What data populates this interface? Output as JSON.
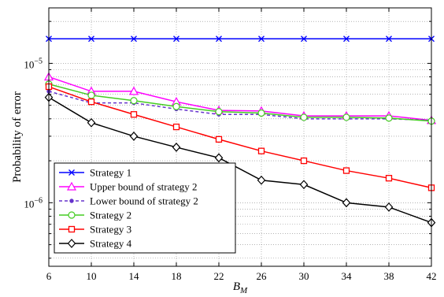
{
  "chart_data": {
    "type": "line",
    "xlabel": "B",
    "xlabel_sub": "M",
    "ylabel": "Probability of error",
    "x": [
      6,
      10,
      14,
      18,
      22,
      26,
      30,
      34,
      38,
      42
    ],
    "xlim": [
      6,
      42
    ],
    "ylim": [
      3.5e-07,
      2.5e-05
    ],
    "yscale": "log",
    "grid": "dotted",
    "legend_position": "bottom-left",
    "x_ticks": [
      "6",
      "10",
      "14",
      "18",
      "22",
      "26",
      "30",
      "34",
      "38",
      "42"
    ],
    "y_ticks": [
      {
        "value": 1e-06,
        "base": "10",
        "exp": "−6"
      },
      {
        "value": 1e-05,
        "base": "10",
        "exp": "−5"
      }
    ],
    "series": [
      {
        "name": "Strategy 1",
        "color": "#0000ff",
        "marker": "x",
        "dash": false,
        "values": [
          1.5e-05,
          1.5e-05,
          1.5e-05,
          1.5e-05,
          1.5e-05,
          1.5e-05,
          1.5e-05,
          1.5e-05,
          1.5e-05,
          1.5e-05
        ]
      },
      {
        "name": "Upper bound of strategy 2",
        "color": "#ff00ff",
        "marker": "triangle",
        "dash": false,
        "values": [
          8e-06,
          6.3e-06,
          6.3e-06,
          5.3e-06,
          4.6e-06,
          4.55e-06,
          4.2e-06,
          4.2e-06,
          4.2e-06,
          3.9e-06
        ]
      },
      {
        "name": "Lower bound of strategy 2",
        "color": "#6633cc",
        "marker": "dot",
        "dash": true,
        "values": [
          6.3e-06,
          5.2e-06,
          5.2e-06,
          4.7e-06,
          4.3e-06,
          4.3e-06,
          4e-06,
          4e-06,
          4e-06,
          3.9e-06
        ]
      },
      {
        "name": "Strategy 2",
        "color": "#44cc22",
        "marker": "circle",
        "dash": false,
        "values": [
          7.1e-06,
          5.9e-06,
          5.4e-06,
          4.9e-06,
          4.5e-06,
          4.4e-06,
          4.1e-06,
          4.1e-06,
          4.05e-06,
          3.85e-06
        ]
      },
      {
        "name": "Strategy 3",
        "color": "#ff0000",
        "marker": "square",
        "dash": false,
        "values": [
          6.8e-06,
          5.3e-06,
          4.3e-06,
          3.5e-06,
          2.85e-06,
          2.35e-06,
          2e-06,
          1.7e-06,
          1.5e-06,
          1.28e-06
        ]
      },
      {
        "name": "Strategy 4",
        "color": "#000000",
        "marker": "diamond",
        "dash": false,
        "values": [
          5.7e-06,
          3.75e-06,
          3e-06,
          2.5e-06,
          2.1e-06,
          1.45e-06,
          1.35e-06,
          1e-06,
          9.3e-07,
          7.2e-07
        ]
      }
    ]
  }
}
